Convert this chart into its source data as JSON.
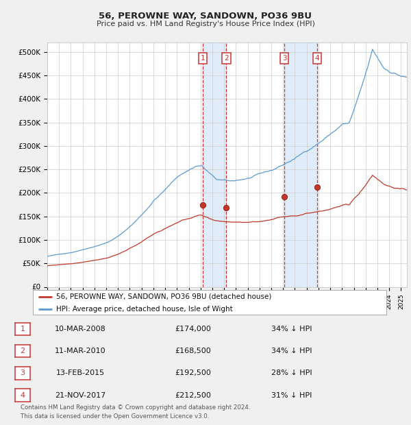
{
  "title1": "56, PEROWNE WAY, SANDOWN, PO36 9BU",
  "title2": "Price paid vs. HM Land Registry's House Price Index (HPI)",
  "legend_red": "56, PEROWNE WAY, SANDOWN, PO36 9BU (detached house)",
  "legend_blue": "HPI: Average price, detached house, Isle of Wight",
  "footnote1": "Contains HM Land Registry data © Crown copyright and database right 2024.",
  "footnote2": "This data is licensed under the Open Government Licence v3.0.",
  "transactions": [
    {
      "num": 1,
      "date": "10-MAR-2008",
      "price": "£174,000",
      "pct": "34% ↓ HPI"
    },
    {
      "num": 2,
      "date": "11-MAR-2010",
      "price": "£168,500",
      "pct": "34% ↓ HPI"
    },
    {
      "num": 3,
      "date": "13-FEB-2015",
      "price": "£192,500",
      "pct": "28% ↓ HPI"
    },
    {
      "num": 4,
      "date": "21-NOV-2017",
      "price": "£212,500",
      "pct": "31% ↓ HPI"
    }
  ],
  "trans_dates_decimal": [
    2008.19,
    2010.19,
    2015.11,
    2017.89
  ],
  "trans_prices": [
    174000,
    168500,
    192500,
    212500
  ],
  "blue_color": "#5b9bd5",
  "red_color": "#c0392b",
  "background_color": "#f0f0f0",
  "plot_bg_color": "#ffffff",
  "grid_color": "#cccccc",
  "shade_color": "#cce0f5",
  "dashed_color": "#cc3333",
  "box_color": "#cc3333",
  "ylim": [
    0,
    520000
  ],
  "yticks": [
    0,
    50000,
    100000,
    150000,
    200000,
    250000,
    300000,
    350000,
    400000,
    450000,
    500000
  ],
  "ytick_labels": [
    "£0",
    "£50K",
    "£100K",
    "£150K",
    "£200K",
    "£250K",
    "£300K",
    "£350K",
    "£400K",
    "£450K",
    "£500K"
  ],
  "xlim_start": 1995.0,
  "xlim_end": 2025.5
}
